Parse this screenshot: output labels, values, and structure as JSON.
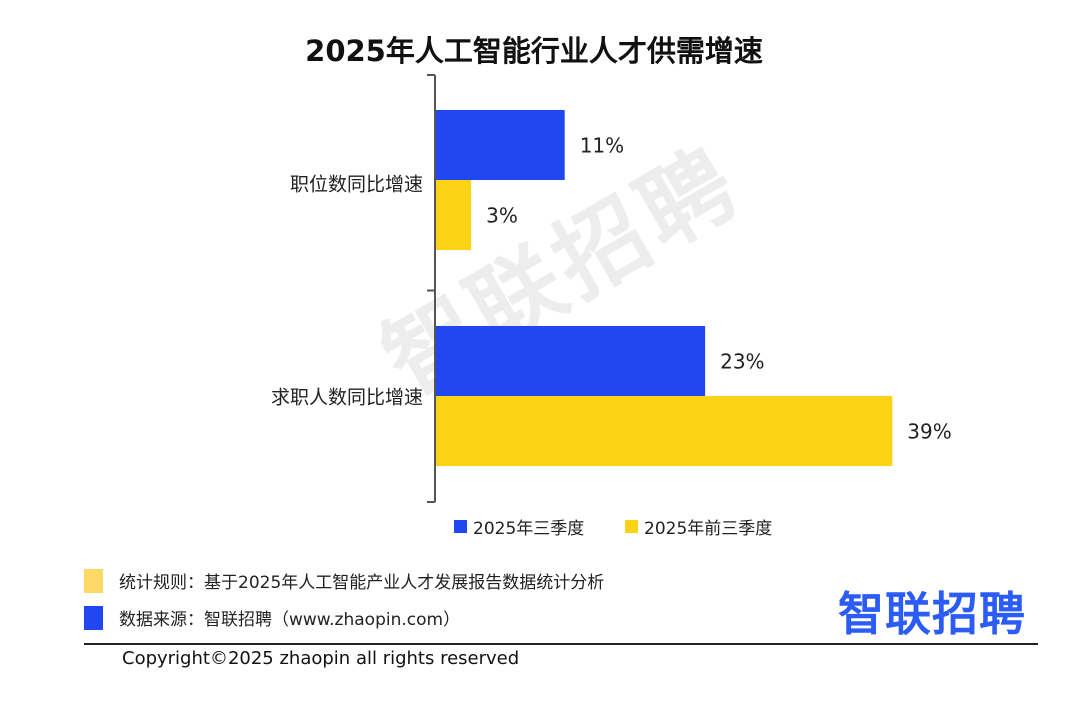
{
  "title": "2025年人工智能行业人才供需增速",
  "watermark": "智联招聘",
  "colors": {
    "series1": "#2148f0",
    "series2": "#fcd215",
    "note_yellow": "#ffd966",
    "note_blue": "#2148f0",
    "logo": "#2b5cf5"
  },
  "notes": [
    {
      "label": "统计规则：基于2025年人工智能产业人才发展报告数据统计分析"
    },
    {
      "label": "数据来源：智联招聘（www.zhaopin.com）"
    }
  ],
  "logo_text": "智联招聘",
  "copyright": "Copyright©2025 zhaopin all rights reserved",
  "chart_data": {
    "type": "bar",
    "orientation": "horizontal",
    "title": "2025年人工智能行业人才供需增速",
    "categories": [
      "职位数同比增速",
      "求职人数同比增速"
    ],
    "series": [
      {
        "name": "2025年三季度",
        "values": [
          11,
          23
        ],
        "labels": [
          "11%",
          "23%"
        ],
        "color": "#2148f0"
      },
      {
        "name": "2025年前三季度",
        "values": [
          3,
          39
        ],
        "labels": [
          "3%",
          "39%"
        ],
        "color": "#fcd215"
      }
    ],
    "unit": "%",
    "xlim": [
      0,
      40
    ],
    "grid": false,
    "legend": "bottom"
  }
}
